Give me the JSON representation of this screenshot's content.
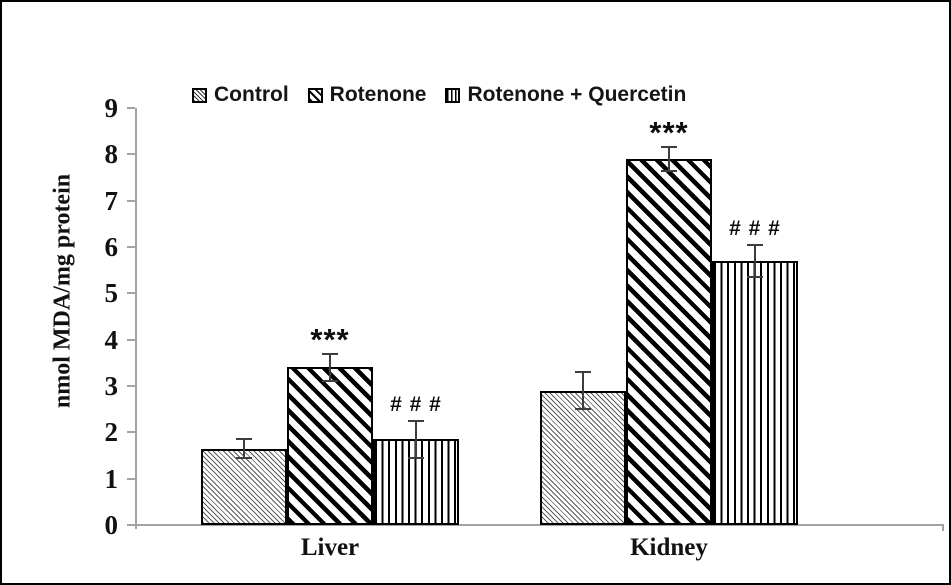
{
  "figure": {
    "background": "#ffffff",
    "frame_color": "#000000"
  },
  "colors": {
    "axis": "#a3a3a3",
    "tick": "#a3a3a3",
    "error_bar": "#3d3d3d",
    "text": "#111111",
    "bar_border": "#000000"
  },
  "chart_data": {
    "type": "bar",
    "title": "",
    "xlabel": "",
    "ylabel": "nmol MDA/mg protein",
    "ylim": [
      0,
      9
    ],
    "yticks": [
      0,
      1,
      2,
      3,
      4,
      5,
      6,
      7,
      8,
      9
    ],
    "grid": false,
    "legend_position": "top",
    "categories": [
      "Liver",
      "Kidney"
    ],
    "series": [
      {
        "name": "Control",
        "pattern": "diagonal-fine",
        "values": [
          1.65,
          2.9
        ],
        "errors": [
          0.2,
          0.4
        ],
        "annotations": [
          "",
          ""
        ]
      },
      {
        "name": "Rotenone",
        "pattern": "diagonal-thick",
        "values": [
          3.4,
          7.9
        ],
        "errors": [
          0.3,
          0.25
        ],
        "annotations": [
          "***",
          "***"
        ]
      },
      {
        "name": "Rotenone + Quercetin",
        "pattern": "vertical-lines",
        "values": [
          1.85,
          5.7
        ],
        "errors": [
          0.4,
          0.35
        ],
        "annotations": [
          "# # #",
          "# # #"
        ]
      }
    ]
  }
}
